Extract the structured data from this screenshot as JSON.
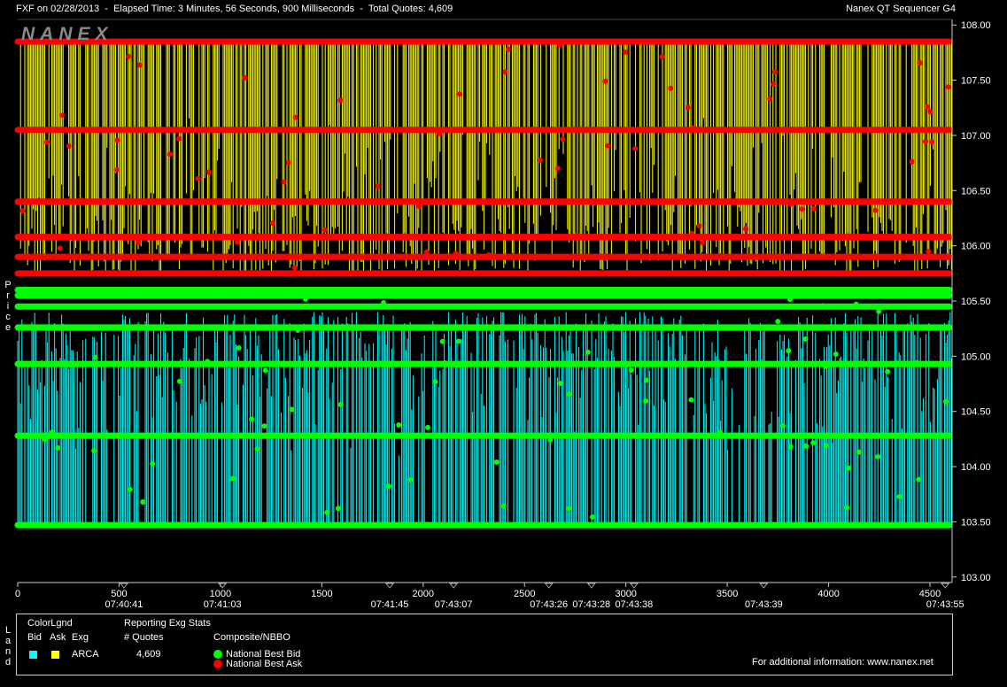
{
  "header": {
    "left_text": "FXF on 02/28/2013  -  Elapsed Time: 3 Minutes, 56 Seconds, 900 Milliseconds  -  Total Quotes: 4,609",
    "right_text": "Nanex QT Sequencer G4"
  },
  "watermark": "NANEX",
  "side_labels": {
    "price": "Price",
    "land": "Land"
  },
  "legend": {
    "color_legend_title": "ColorLgnd",
    "col_bid": "Bid",
    "col_ask": "Ask",
    "col_exg": "Exg",
    "exchange": "ARCA",
    "bid_color": "#00ffff",
    "ask_color": "#ffff00",
    "stats_title": "Reporting Exg Stats",
    "quotes_label": "# Quotes",
    "quotes_value": "4,609",
    "composite_title": "Composite/NBBO",
    "nbb_label": "National Best Bid",
    "nbo_label": "National Best Ask",
    "nbb_color": "#00ff00",
    "nbo_color": "#ff0000",
    "info_text": "For additional information: www.nanex.net"
  },
  "chart_data": {
    "type": "scatter",
    "title": "",
    "xlabel": "",
    "ylabel": "Price",
    "xlim": [
      0,
      4609
    ],
    "ylim": [
      102.95,
      108.05
    ],
    "x_ticks": [
      0,
      500,
      1000,
      1500,
      2000,
      2500,
      3000,
      3500,
      4000,
      4500
    ],
    "y_ticks": [
      "103.00",
      "103.50",
      "104.00",
      "104.50",
      "105.00",
      "105.50",
      "106.00",
      "106.50",
      "107.00",
      "107.50",
      "108.00"
    ],
    "time_labels": [
      {
        "x": 524,
        "label": "07:40:41"
      },
      {
        "x": 1010,
        "label": "07:41:03"
      },
      {
        "x": 1835,
        "label": "07:41:45"
      },
      {
        "x": 2150,
        "label": "07:43:07"
      },
      {
        "x": 2620,
        "label": "07:43:26"
      },
      {
        "x": 2830,
        "label": "07:43:28"
      },
      {
        "x": 3040,
        "label": "07:43:38"
      },
      {
        "x": 3680,
        "label": "07:43:39"
      },
      {
        "x": 4575,
        "label": "07:43:55"
      }
    ],
    "series": [
      {
        "name": "National Best Bid",
        "color": "#00ff00",
        "levels": [
          105.6,
          105.55,
          105.45,
          105.26,
          104.93,
          104.28,
          103.47
        ]
      },
      {
        "name": "National Best Ask",
        "color": "#ff0000",
        "levels": [
          107.85,
          107.05,
          106.4,
          106.08,
          105.9,
          105.75
        ]
      }
    ],
    "arca_bid_range": [
      103.47,
      105.4
    ],
    "arca_ask_range": [
      105.75,
      107.85
    ],
    "grid": false
  }
}
